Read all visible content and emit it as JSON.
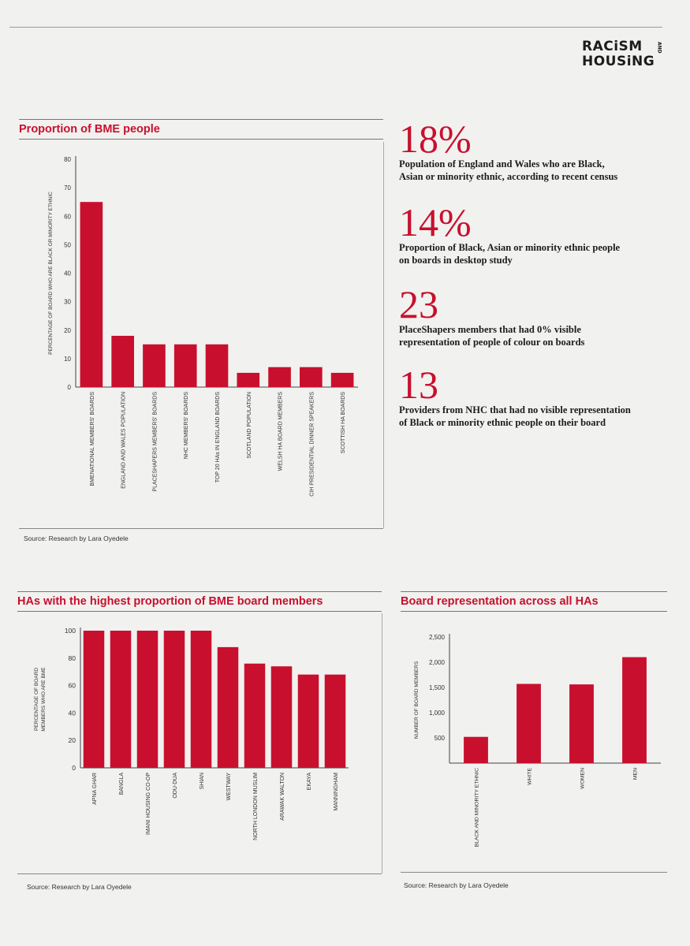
{
  "brand": {
    "line1": "RACiSM",
    "line2": "HOUSiNG",
    "and": "AND"
  },
  "section1": {
    "title": "Proportion of BME people",
    "source": "Source: Research by Lara Oyedele"
  },
  "section2": {
    "title": "HAs with the highest proportion of BME board members",
    "source": "Source: Research by Lara Oyedele"
  },
  "section3": {
    "title": "Board representation across all HAs",
    "source": "Source: Research by Lara Oyedele"
  },
  "stats": [
    {
      "value": "18%",
      "desc_line1": "Population of England and Wales who are Black,",
      "desc_line2": "Asian or minority ethnic, according to recent census"
    },
    {
      "value": "14%",
      "desc_line1": "Proportion of Black, Asian or minority ethnic people",
      "desc_line2": "on boards in desktop study"
    },
    {
      "value": "23",
      "desc_line1": "PlaceShapers members that had 0% visible",
      "desc_line2": "representation of people of colour on boards"
    },
    {
      "value": "13",
      "desc_line1": "Providers from NHC that had no visible representation",
      "desc_line2": "of Black or minority ethnic people on their board"
    }
  ],
  "chart_data": [
    {
      "type": "bar",
      "title": "Proportion of BME people",
      "ylabel": "PERCENTAGE OF BOARD WHO ARE BLACK OR MINORITY ETHNIC",
      "xlabel": "",
      "ylim": [
        0,
        80
      ],
      "yticks": [
        "0",
        "10",
        "20",
        "30",
        "40",
        "50",
        "60",
        "70",
        "80"
      ],
      "categories": [
        "BMENATIONAL MEMBERS' BOARDS",
        "ENGLAND AND WALES POPULATION",
        "PLACESHAPERS MEMBERS' BOARDS",
        "NHC MEMBERS' BOARDS",
        "TOP 20 HAs IN ENGLAND BOARDS",
        "SCOTLAND POPULATION",
        "WELSH HA BOARD MEMBERS",
        "CIH PRESIDENTIAL DINNER SPEAKERS",
        "SCOTTISH HA BOARDS"
      ],
      "values": [
        65,
        18,
        15,
        15,
        15,
        5,
        7,
        7,
        5
      ],
      "color": "#c8102e",
      "grid": false
    },
    {
      "type": "bar",
      "title": "HAs with the highest proportion of BME board members",
      "ylabel_line1": "PERCENTAGE OF BOARD",
      "ylabel_line2": "MEMBERS WHO ARE BME",
      "xlabel": "",
      "ylim": [
        0,
        100
      ],
      "yticks": [
        "0",
        "20",
        "40",
        "60",
        "80",
        "100"
      ],
      "categories": [
        "APNA GHAR",
        "BANGLA",
        "IMANI HOUSING CO-OP",
        "ODU-DUA",
        "SHIAN",
        "WESTWAY",
        "NORTH LONDON MUSLIM",
        "ARAWAK WALTON",
        "EKAYA",
        "MANNINGHAM"
      ],
      "values": [
        100,
        100,
        100,
        100,
        100,
        88,
        76,
        74,
        68,
        68
      ],
      "color": "#c8102e",
      "grid": false
    },
    {
      "type": "bar",
      "title": "Board representation across all HAs",
      "ylabel": "NUMBER OF BOARD MEMBERS",
      "xlabel": "",
      "ylim": [
        0,
        2500
      ],
      "yticks": [
        "500",
        "1,000",
        "1,500",
        "2,000",
        "2,500"
      ],
      "ytick_values": [
        500,
        1000,
        1500,
        2000,
        2500
      ],
      "categories": [
        "BLACK AND MINORITY ETHNIC",
        "WHITE",
        "WOMEN",
        "MEN"
      ],
      "values": [
        520,
        1570,
        1560,
        2100
      ],
      "color": "#c8102e",
      "grid": false
    }
  ]
}
